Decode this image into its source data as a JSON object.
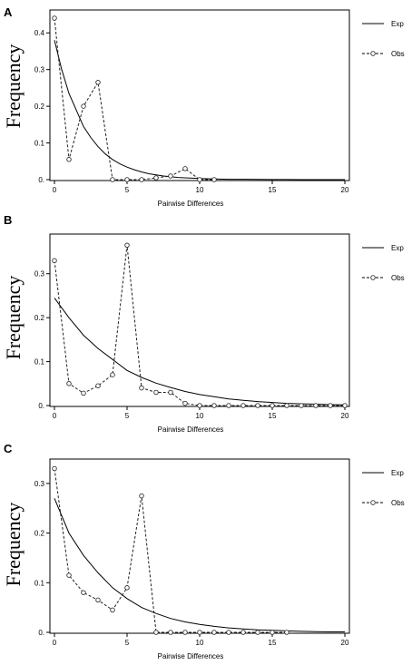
{
  "chart_data": [
    {
      "panel": "A",
      "type": "line",
      "xlabel": "Pairwise Differences",
      "ylabel": "Frequency",
      "xlim": [
        0,
        20
      ],
      "ylim": [
        0,
        0.45
      ],
      "xticks": [
        0,
        5,
        10,
        15,
        20
      ],
      "yticks": [
        0,
        0.1,
        0.2,
        0.3,
        0.4
      ],
      "ytick_labels": [
        "0.",
        "0.1",
        "0.2",
        "0.3",
        "0.4"
      ],
      "grid": false,
      "legend": "right",
      "series": [
        {
          "name": "Exp",
          "style": "solid",
          "x": [
            0,
            0.5,
            1,
            1.5,
            2,
            2.5,
            3,
            3.5,
            4,
            4.5,
            5,
            5.5,
            6,
            6.5,
            7,
            7.5,
            8,
            8.5,
            9,
            9.5,
            10,
            11,
            12,
            13,
            14,
            15,
            16,
            17,
            18,
            19,
            20
          ],
          "values": [
            0.38,
            0.3,
            0.235,
            0.19,
            0.145,
            0.115,
            0.09,
            0.07,
            0.055,
            0.043,
            0.034,
            0.027,
            0.021,
            0.016,
            0.013,
            0.01,
            0.008,
            0.006,
            0.005,
            0.004,
            0.003,
            0.002,
            0.001,
            0.001,
            0.0005,
            0.0003,
            0.0002,
            0.0001,
            0.0001,
            0.0,
            0.0
          ]
        },
        {
          "name": "Obs",
          "style": "dashed",
          "marker": "circle",
          "x": [
            0,
            1,
            2,
            3,
            4,
            5,
            6,
            7,
            8,
            9,
            10,
            11
          ],
          "values": [
            0.44,
            0.055,
            0.2,
            0.265,
            0.0,
            0.0,
            0.0,
            0.005,
            0.01,
            0.03,
            0.0,
            0.0
          ]
        }
      ]
    },
    {
      "panel": "B",
      "type": "line",
      "xlabel": "Pairwise Differences",
      "ylabel": "Frequency",
      "xlim": [
        0,
        20
      ],
      "ylim": [
        0,
        0.38
      ],
      "xticks": [
        0,
        5,
        10,
        15,
        20
      ],
      "yticks": [
        0,
        0.1,
        0.2,
        0.3
      ],
      "ytick_labels": [
        "0.",
        "0.1",
        "0.2",
        "0.3"
      ],
      "grid": false,
      "legend": "right",
      "series": [
        {
          "name": "Exp",
          "style": "solid",
          "x": [
            0,
            1,
            2,
            3,
            4,
            5,
            6,
            7,
            8,
            9,
            10,
            11,
            12,
            13,
            14,
            15,
            16,
            17,
            18,
            19,
            20
          ],
          "values": [
            0.245,
            0.2,
            0.16,
            0.13,
            0.105,
            0.08,
            0.064,
            0.051,
            0.041,
            0.032,
            0.025,
            0.02,
            0.015,
            0.012,
            0.009,
            0.007,
            0.005,
            0.004,
            0.003,
            0.002,
            0.0015
          ]
        },
        {
          "name": "Obs",
          "style": "dashed",
          "marker": "circle",
          "x": [
            0,
            1,
            2,
            3,
            4,
            5,
            6,
            7,
            8,
            9,
            10,
            11,
            12,
            13,
            14,
            15,
            16,
            17,
            18,
            19,
            20
          ],
          "values": [
            0.33,
            0.05,
            0.028,
            0.045,
            0.07,
            0.365,
            0.04,
            0.03,
            0.03,
            0.005,
            0.0,
            0.0,
            0.0,
            0.0,
            0.0,
            0.0,
            0.0,
            0.0,
            0.0,
            0.0,
            0.0
          ]
        }
      ]
    },
    {
      "panel": "C",
      "type": "line",
      "xlabel": "Pairwise Differences",
      "ylabel": "Frequency",
      "xlim": [
        0,
        20
      ],
      "ylim": [
        0,
        0.34
      ],
      "xticks": [
        0,
        5,
        10,
        15,
        20
      ],
      "yticks": [
        0,
        0.1,
        0.2,
        0.3
      ],
      "ytick_labels": [
        "0.",
        "0.1",
        "0.2",
        "0.3"
      ],
      "grid": false,
      "legend": "right",
      "series": [
        {
          "name": "Exp",
          "style": "solid",
          "x": [
            0,
            1,
            2,
            3,
            4,
            5,
            6,
            7,
            8,
            9,
            10,
            11,
            12,
            13,
            14,
            15,
            16,
            17,
            18,
            19,
            20
          ],
          "values": [
            0.27,
            0.2,
            0.155,
            0.12,
            0.09,
            0.068,
            0.05,
            0.038,
            0.028,
            0.021,
            0.016,
            0.012,
            0.009,
            0.007,
            0.005,
            0.004,
            0.003,
            0.002,
            0.0015,
            0.001,
            0.001
          ]
        },
        {
          "name": "Obs",
          "style": "dashed",
          "marker": "circle",
          "x": [
            0,
            1,
            2,
            3,
            4,
            5,
            6,
            7,
            8,
            9,
            10,
            11,
            12,
            13,
            14,
            15,
            16
          ],
          "values": [
            0.33,
            0.115,
            0.08,
            0.065,
            0.045,
            0.09,
            0.275,
            0.0,
            0.0,
            0.0,
            0.0,
            0.0,
            0.0,
            0.0,
            0.0,
            0.0,
            0.0
          ]
        }
      ]
    }
  ]
}
